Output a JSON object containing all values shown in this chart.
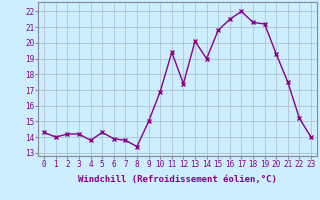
{
  "x": [
    0,
    1,
    2,
    3,
    4,
    5,
    6,
    7,
    8,
    9,
    10,
    11,
    12,
    13,
    14,
    15,
    16,
    17,
    18,
    19,
    20,
    21,
    22,
    23
  ],
  "y": [
    14.3,
    14.0,
    14.2,
    14.2,
    13.8,
    14.3,
    13.9,
    13.8,
    13.4,
    15.0,
    16.9,
    19.4,
    17.4,
    20.1,
    19.0,
    20.8,
    21.5,
    22.0,
    21.3,
    21.2,
    19.3,
    17.5,
    15.2,
    14.0
  ],
  "line_color": "#880088",
  "marker": "x",
  "marker_size": 3,
  "xlabel": "Windchill (Refroidissement éolien,°C)",
  "xlabel_fontsize": 6.5,
  "xtick_labels": [
    "0",
    "1",
    "2",
    "3",
    "4",
    "5",
    "6",
    "7",
    "8",
    "9",
    "10",
    "11",
    "12",
    "13",
    "14",
    "15",
    "16",
    "17",
    "18",
    "19",
    "20",
    "21",
    "22",
    "23"
  ],
  "ytick_labels": [
    "13",
    "14",
    "15",
    "16",
    "17",
    "18",
    "19",
    "20",
    "21",
    "22"
  ],
  "ylim": [
    12.8,
    22.6
  ],
  "xlim": [
    -0.5,
    23.5
  ],
  "bg_color": "#cceeff",
  "grid_color": "#aabbcc",
  "tick_fontsize": 5.5,
  "linewidth": 1.0
}
